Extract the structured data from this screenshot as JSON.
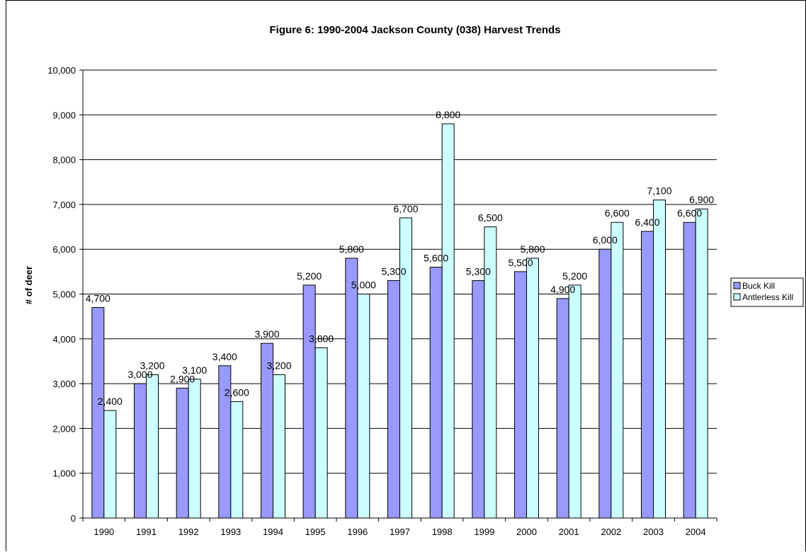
{
  "chart_data": {
    "type": "bar",
    "title": "Figure 6: 1990-2004 Jackson County (038) Harvest Trends",
    "xlabel": "",
    "ylabel": "# of deer",
    "ylim": [
      0,
      10000
    ],
    "yticks": [
      "0",
      "1,000",
      "2,000",
      "3,000",
      "4,000",
      "5,000",
      "6,000",
      "7,000",
      "8,000",
      "9,000",
      "10,000"
    ],
    "grid": "horizontal",
    "legend_position": "right",
    "categories": [
      "1990",
      "1991",
      "1992",
      "1993",
      "1994",
      "1995",
      "1996",
      "1997",
      "1998",
      "1999",
      "2000",
      "2001",
      "2002",
      "2003",
      "2004"
    ],
    "series": [
      {
        "name": "Buck Kill",
        "color": "#9999FF",
        "values": [
          4700,
          3000,
          2900,
          3400,
          3900,
          5200,
          5800,
          5300,
          5600,
          5300,
          5500,
          4900,
          6000,
          6400,
          6600
        ],
        "labels": [
          "4,700",
          "3,000",
          "2,900",
          "3,400",
          "3,900",
          "5,200",
          "5,800",
          "5,300",
          "5,600",
          "5,300",
          "5,500",
          "4,900",
          "6,000",
          "6,400",
          "6,600"
        ]
      },
      {
        "name": "Antlerless Kill",
        "color": "#CCFFFF",
        "values": [
          2400,
          3200,
          3100,
          2600,
          3200,
          3800,
          5000,
          6700,
          8800,
          6500,
          5800,
          5200,
          6600,
          7100,
          6900
        ],
        "labels": [
          "2,400",
          "3,200",
          "3,100",
          "2,600",
          "3,200",
          "3,800",
          "5,000",
          "6,700",
          "8,800",
          "6,500",
          "5,800",
          "5,200",
          "6,600",
          "7,100",
          "6,900"
        ]
      }
    ]
  }
}
